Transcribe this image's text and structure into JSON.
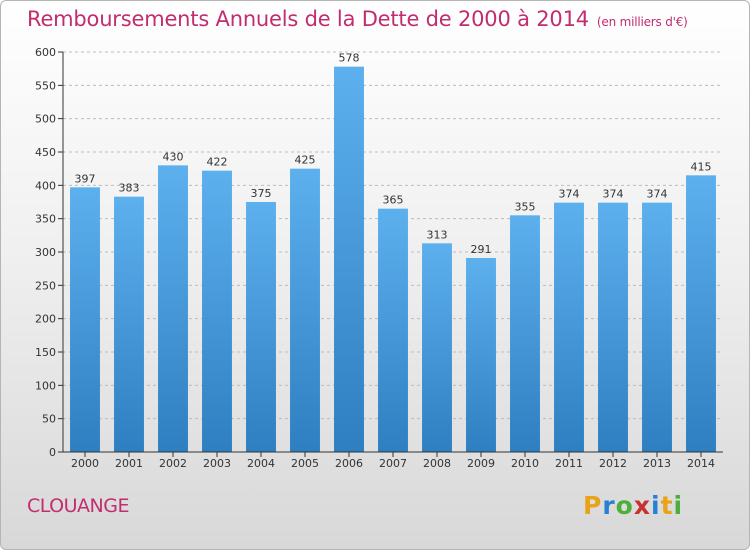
{
  "title": "Remboursements Annuels de la Dette de 2000 à 2014",
  "subtitle": "(en milliers d'€)",
  "city": "CLOUANGE",
  "logo": {
    "letters": [
      "P",
      "r",
      "o",
      "x",
      "i",
      "t",
      "i"
    ],
    "colors": [
      "#e8a317",
      "#2a7fd4",
      "#4caf3a",
      "#c8312e",
      "#2a7fd4",
      "#e8a317",
      "#4caf3a"
    ]
  },
  "colors": {
    "title": "#c22d6f",
    "bar_top": "#5db0ee",
    "bar_bottom": "#2e7fc1",
    "grid": "#bcbcbc"
  },
  "chart_data": {
    "type": "bar",
    "categories": [
      "2000",
      "2001",
      "2002",
      "2003",
      "2004",
      "2005",
      "2006",
      "2007",
      "2008",
      "2009",
      "2010",
      "2011",
      "2012",
      "2013",
      "2014"
    ],
    "values": [
      397,
      383,
      430,
      422,
      375,
      425,
      578,
      365,
      313,
      291,
      355,
      374,
      374,
      374,
      415
    ],
    "title": "Remboursements Annuels de la Dette de 2000 à 2014",
    "xlabel": "",
    "ylabel": "",
    "ylim": [
      0,
      600
    ],
    "yticks": [
      0,
      50,
      100,
      150,
      200,
      250,
      300,
      350,
      400,
      450,
      500,
      550,
      600
    ],
    "grid": true
  }
}
